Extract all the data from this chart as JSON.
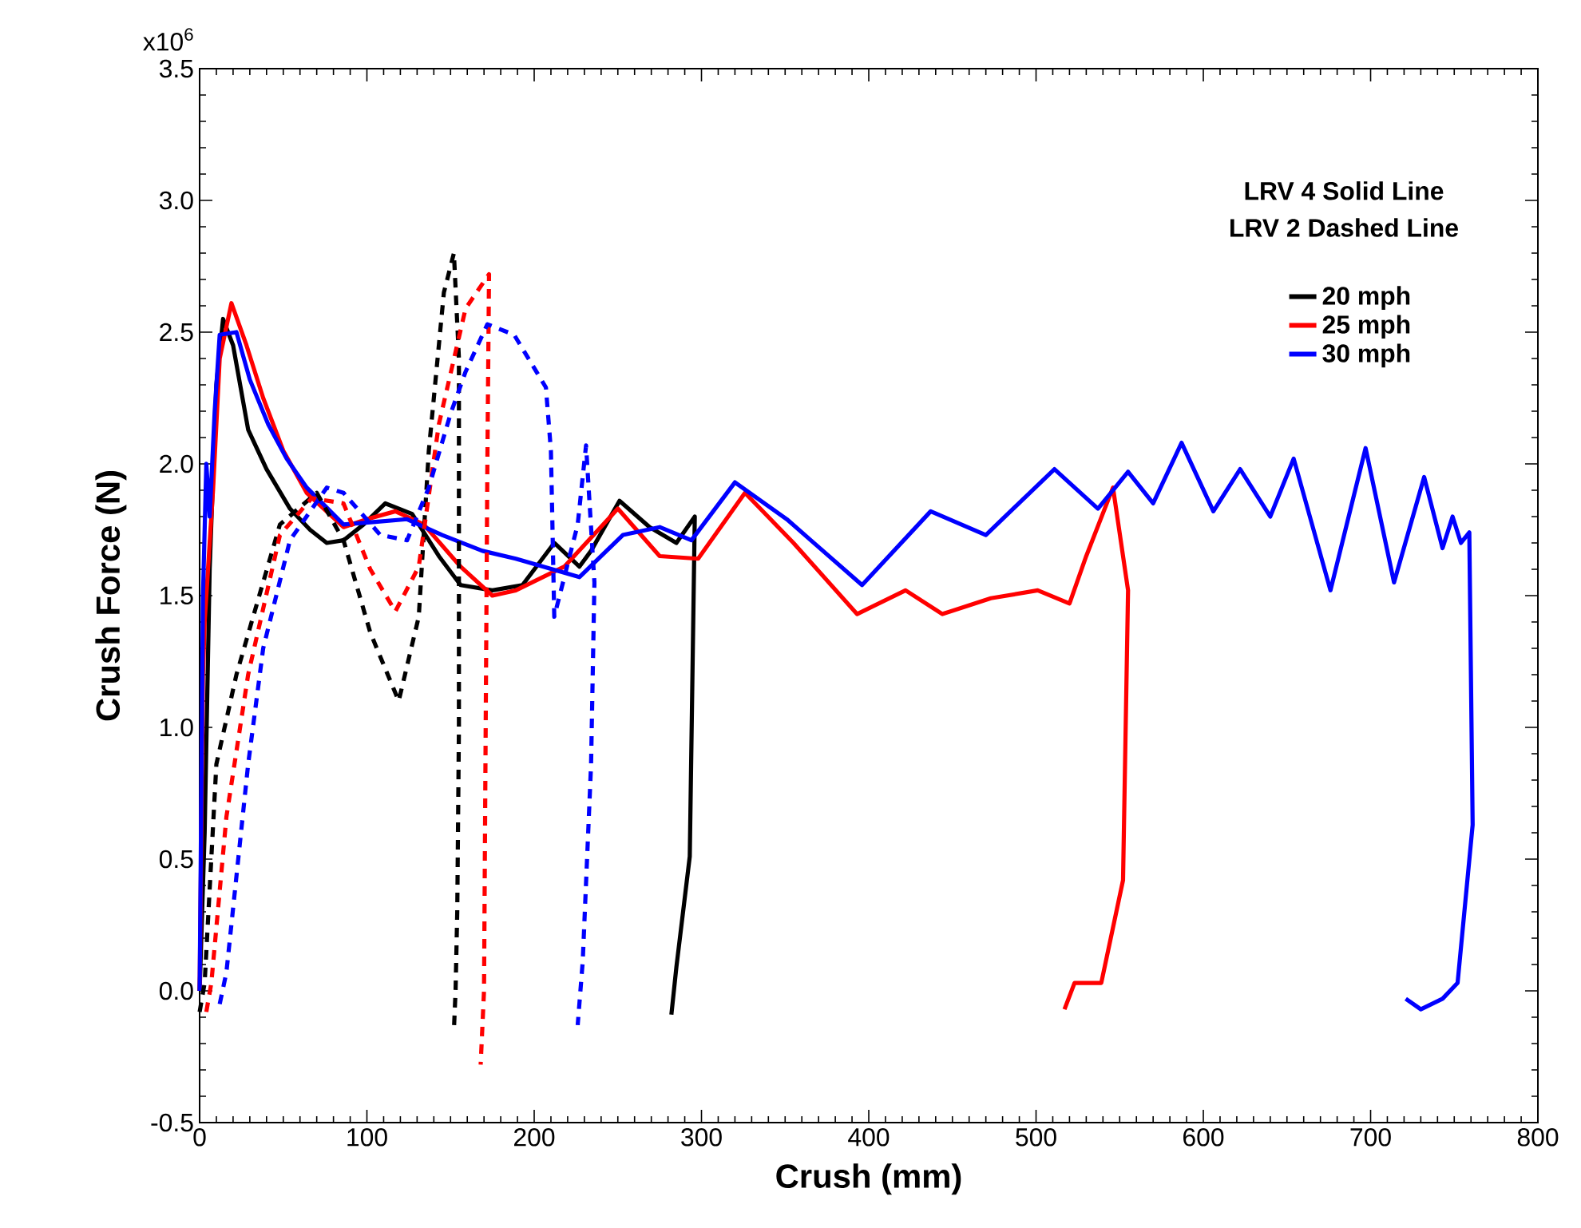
{
  "chart_data": {
    "type": "line",
    "xlabel": "Crush (mm)",
    "ylabel": "Crush Force (N)",
    "annotations": [
      "LRV 4 Solid Line",
      "LRV 2 Dashed Line",
      "x10$^{6}$"
    ],
    "legend": "top right",
    "xlim": [
      0,
      800
    ],
    "xticks": [
      0,
      100,
      200,
      300,
      400,
      500,
      600,
      700,
      800
    ],
    "ylim": [
      -0.5,
      3.5
    ],
    "yticks": [
      {
        "value": -0.5,
        "label": "-0.5"
      },
      {
        "value": 0,
        "label": "0.0"
      },
      {
        "value": 0.5,
        "label": "0.5"
      },
      {
        "value": 1,
        "label": "1.0"
      },
      {
        "value": 1.5,
        "label": "1.5"
      },
      {
        "value": 2,
        "label": "2.0"
      },
      {
        "value": 2.5,
        "label": "2.5"
      },
      {
        "value": 3,
        "label": "3.0"
      },
      {
        "value": 3.5,
        "label": "3.5"
      }
    ],
    "series": [
      {
        "name": "20 mph",
        "color": "#000000",
        "line_style": "solid",
        "x": [
          0,
          3,
          6,
          10,
          14,
          20,
          29,
          40,
          54,
          66,
          76,
          86,
          98,
          111,
          127,
          143,
          156,
          175,
          193,
          212,
          227,
          234,
          251,
          269,
          285,
          296,
          293,
          285,
          282
        ],
        "values": [
          0,
          0.6,
          1.6,
          2.3,
          2.55,
          2.45,
          2.13,
          1.98,
          1.83,
          1.75,
          1.7,
          1.71,
          1.77,
          1.85,
          1.81,
          1.65,
          1.54,
          1.52,
          1.54,
          1.7,
          1.61,
          1.67,
          1.86,
          1.76,
          1.7,
          1.8,
          0.51,
          0.09,
          -0.09
        ]
      },
      {
        "name": "25 mph",
        "color": "#ff0000",
        "line_style": "solid",
        "x": [
          0,
          2,
          3,
          5,
          8,
          12,
          19,
          28,
          38,
          50,
          64,
          86,
          100,
          117,
          134,
          156,
          175,
          189,
          218,
          250,
          275,
          298,
          326,
          355,
          393,
          422,
          444,
          473,
          501,
          520,
          530,
          546,
          555,
          552,
          539,
          523,
          517
        ],
        "values": [
          0,
          1.2,
          1.4,
          1.6,
          1.9,
          2.4,
          2.61,
          2.45,
          2.25,
          2.05,
          1.89,
          1.76,
          1.79,
          1.82,
          1.77,
          1.61,
          1.5,
          1.52,
          1.61,
          1.83,
          1.65,
          1.64,
          1.89,
          1.7,
          1.43,
          1.52,
          1.43,
          1.49,
          1.52,
          1.47,
          1.65,
          1.91,
          1.52,
          0.42,
          0.03,
          0.03,
          -0.07
        ]
      },
      {
        "name": "30 mph",
        "color": "#0000ff",
        "line_style": "solid",
        "x": [
          0,
          2,
          4,
          6,
          9,
          12,
          22,
          30,
          41,
          52,
          64,
          86,
          105,
          124,
          145,
          169,
          189,
          227,
          253,
          275,
          294,
          320,
          351,
          396,
          437,
          470,
          511,
          537,
          555,
          570,
          587,
          606,
          622,
          640,
          654,
          676,
          697,
          714,
          732,
          743,
          749,
          754,
          759,
          761,
          752,
          743,
          730,
          721
        ],
        "values": [
          0,
          1.5,
          2.0,
          1.8,
          2.2,
          2.49,
          2.5,
          2.32,
          2.15,
          2.02,
          1.91,
          1.77,
          1.78,
          1.79,
          1.73,
          1.67,
          1.64,
          1.57,
          1.73,
          1.76,
          1.71,
          1.93,
          1.79,
          1.54,
          1.82,
          1.73,
          1.98,
          1.83,
          1.97,
          1.85,
          2.08,
          1.82,
          1.98,
          1.8,
          2.02,
          1.52,
          2.06,
          1.55,
          1.95,
          1.68,
          1.8,
          1.7,
          1.74,
          0.63,
          0.03,
          -0.03,
          -0.07,
          -0.03
        ]
      },
      {
        "color": "#000000",
        "line_style": "dashed",
        "x": [
          0,
          3,
          10,
          22,
          32,
          48,
          70,
          86,
          102,
          119,
          131,
          137,
          146,
          152,
          155,
          155,
          154,
          153,
          152
        ],
        "values": [
          -0.08,
          0.03,
          0.86,
          1.2,
          1.42,
          1.77,
          1.89,
          1.71,
          1.36,
          1.1,
          1.42,
          2.05,
          2.65,
          2.8,
          2.4,
          1.0,
          0.3,
          0.0,
          -0.15
        ]
      },
      {
        "color": "#ff0000",
        "line_style": "dashed",
        "x": [
          4,
          7,
          16,
          29,
          48,
          67,
          86,
          102,
          117,
          131,
          143,
          159,
          173,
          172,
          171,
          170,
          168
        ],
        "values": [
          -0.08,
          0.03,
          0.66,
          1.2,
          1.73,
          1.87,
          1.85,
          1.6,
          1.44,
          1.61,
          2.15,
          2.59,
          2.72,
          2.0,
          1.0,
          0.0,
          -0.28
        ]
      },
      {
        "color": "#0000ff",
        "line_style": "dashed",
        "x": [
          12,
          16,
          29,
          38,
          54,
          76,
          86,
          108,
          124,
          137,
          150,
          159,
          172,
          188,
          207,
          210,
          212,
          226,
          231,
          236,
          234,
          229,
          226
        ],
        "values": [
          -0.05,
          0.07,
          0.86,
          1.3,
          1.71,
          1.91,
          1.89,
          1.73,
          1.71,
          1.91,
          2.19,
          2.35,
          2.53,
          2.49,
          2.29,
          2.05,
          1.42,
          1.77,
          2.07,
          1.55,
          0.86,
          0.11,
          -0.13
        ]
      }
    ]
  }
}
